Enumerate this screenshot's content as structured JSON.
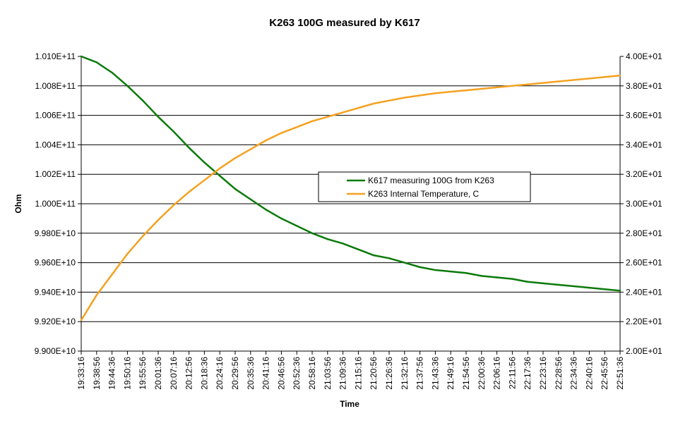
{
  "chart_data": {
    "type": "line",
    "title": "K263 100G measured by K617",
    "xlabel": "Time",
    "ylabel": "Ohm",
    "y2label": "",
    "categories": [
      "19:33:16",
      "19:38:56",
      "19:44:36",
      "19:50:16",
      "19:55:56",
      "20:01:36",
      "20:07:16",
      "20:12:56",
      "20:18:36",
      "20:24:16",
      "20:29:56",
      "20:35:36",
      "20:41:16",
      "20:46:56",
      "20:52:36",
      "20:58:16",
      "21:03:56",
      "21:09:36",
      "21:15:16",
      "21:20:56",
      "21:26:36",
      "21:32:16",
      "21:37:56",
      "21:43:36",
      "21:49:16",
      "21:54:56",
      "22:00:36",
      "22:06:16",
      "22:11:56",
      "22:17:36",
      "22:23:16",
      "22:28:56",
      "22:34:36",
      "22:40:16",
      "22:45:56",
      "22:51:36"
    ],
    "y_ticks": [
      "9.900E+10",
      "9.920E+10",
      "9.940E+10",
      "9.960E+10",
      "9.980E+10",
      "1.000E+11",
      "1.002E+11",
      "1.004E+11",
      "1.006E+11",
      "1.008E+11",
      "1.010E+11"
    ],
    "y2_ticks": [
      "2.00E+01",
      "2.20E+01",
      "2.40E+01",
      "2.60E+01",
      "2.80E+01",
      "3.00E+01",
      "3.20E+01",
      "3.40E+01",
      "3.60E+01",
      "3.80E+01",
      "4.00E+01"
    ],
    "ylim": [
      99000000000.0,
      101000000000.0
    ],
    "y2lim": [
      20,
      40
    ],
    "grid": true,
    "legend_position": "center-right",
    "series": [
      {
        "name": "K617 measuring 100G from K263",
        "axis": "left",
        "color": "#0a7a0a",
        "values": [
          101000000000.0,
          100960000000.0,
          100890000000.0,
          100800000000.0,
          100700000000.0,
          100590000000.0,
          100490000000.0,
          100380000000.0,
          100280000000.0,
          100190000000.0,
          100100000000.0,
          100030000000.0,
          99960000000.0,
          99900000000.0,
          99850000000.0,
          99800000000.0,
          99760000000.0,
          99730000000.0,
          99690000000.0,
          99650000000.0,
          99630000000.0,
          99600000000.0,
          99570000000.0,
          99550000000.0,
          99540000000.0,
          99530000000.0,
          99510000000.0,
          99500000000.0,
          99490000000.0,
          99470000000.0,
          99460000000.0,
          99450000000.0,
          99440000000.0,
          99430000000.0,
          99420000000.0,
          99410000000.0
        ]
      },
      {
        "name": "K263 Internal Temperature, C",
        "axis": "right",
        "color": "#f5a11f",
        "values": [
          22.1,
          23.8,
          25.2,
          26.6,
          27.8,
          28.9,
          29.9,
          30.8,
          31.6,
          32.4,
          33.1,
          33.7,
          34.3,
          34.8,
          35.2,
          35.6,
          35.9,
          36.2,
          36.5,
          36.8,
          37.0,
          37.2,
          37.35,
          37.5,
          37.6,
          37.7,
          37.8,
          37.9,
          38.0,
          38.1,
          38.2,
          38.3,
          38.4,
          38.5,
          38.6,
          38.7
        ]
      }
    ]
  }
}
